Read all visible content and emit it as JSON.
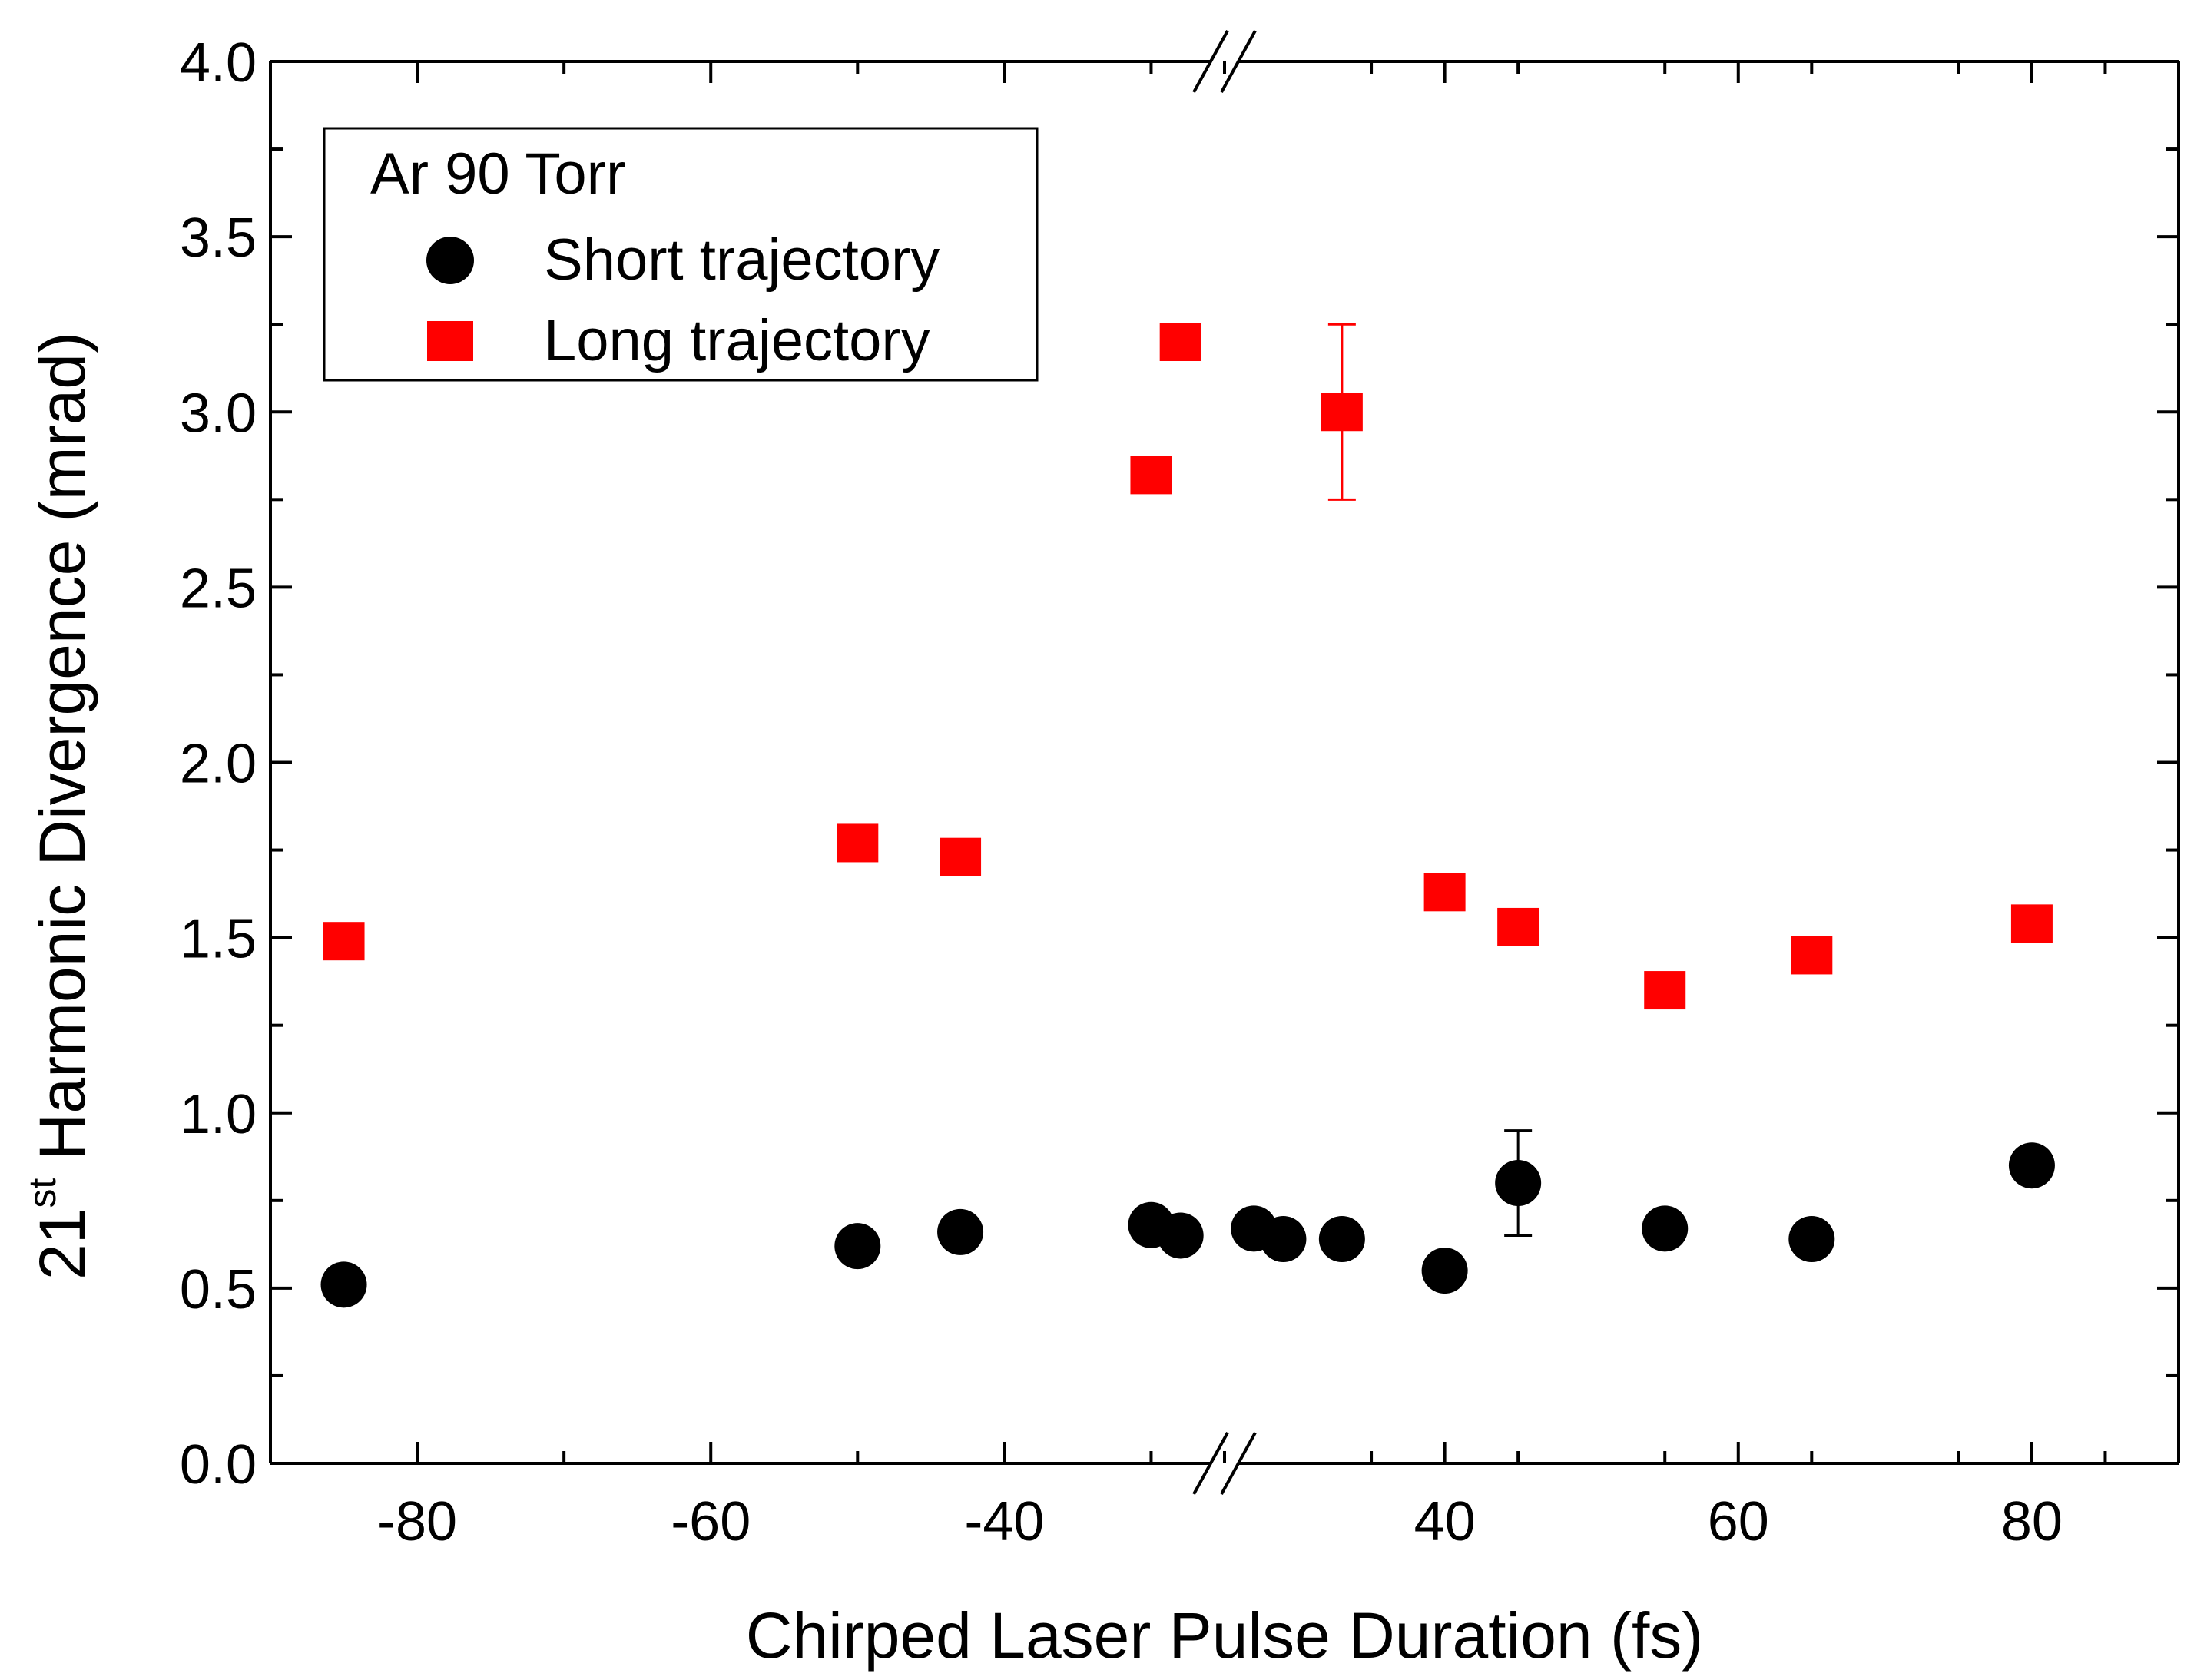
{
  "chart_data": {
    "type": "scatter",
    "title": "",
    "xlabel": "Chirped Laser Pulse Duration (fs)",
    "ylabel": {
      "prefix": "21",
      "superscript": "st",
      "suffix": "Harmonic Divergence (mrad)"
    },
    "x_axis": {
      "broken": true,
      "left_segment": {
        "range": [
          -90,
          -25
        ],
        "ticks": [
          -80,
          -60,
          -40
        ]
      },
      "right_segment": {
        "range": [
          25,
          90
        ],
        "ticks": [
          40,
          60,
          80
        ]
      },
      "tick_labels": [
        "-80",
        "-60",
        "-40",
        "40",
        "60",
        "80"
      ]
    },
    "ylim": [
      0.0,
      4.0
    ],
    "y_ticks": [
      0.0,
      0.5,
      1.0,
      1.5,
      2.0,
      2.5,
      3.0,
      3.5,
      4.0
    ],
    "y_tick_labels": [
      "0.0",
      "0.5",
      "1.0",
      "1.5",
      "2.0",
      "2.5",
      "3.0",
      "3.5",
      "4.0"
    ],
    "legend": {
      "title": "Ar 90 Torr",
      "position": "top-left",
      "entries": [
        "Short trajectory",
        "Long trajectory"
      ]
    },
    "series": [
      {
        "name": "Short trajectory",
        "marker": "circle",
        "color": "#000000",
        "points": [
          {
            "x": -85,
            "y": 0.51
          },
          {
            "x": -50,
            "y": 0.62
          },
          {
            "x": -43,
            "y": 0.66
          },
          {
            "x": -30,
            "y": 0.68
          },
          {
            "x": -28,
            "y": 0.65
          },
          {
            "x": 27,
            "y": 0.67
          },
          {
            "x": 29,
            "y": 0.64
          },
          {
            "x": 33,
            "y": 0.64
          },
          {
            "x": 40,
            "y": 0.55
          },
          {
            "x": 45,
            "y": 0.8,
            "err": 0.15
          },
          {
            "x": 55,
            "y": 0.67
          },
          {
            "x": 65,
            "y": 0.64
          },
          {
            "x": 80,
            "y": 0.85
          }
        ]
      },
      {
        "name": "Long trajectory",
        "marker": "square",
        "color": "#ff0000",
        "points": [
          {
            "x": -85,
            "y": 1.49
          },
          {
            "x": -50,
            "y": 1.77
          },
          {
            "x": -43,
            "y": 1.73
          },
          {
            "x": -30,
            "y": 2.82
          },
          {
            "x": -28,
            "y": 3.2
          },
          {
            "x": 33,
            "y": 3.0,
            "err": 0.25
          },
          {
            "x": 40,
            "y": 1.63
          },
          {
            "x": 45,
            "y": 1.53
          },
          {
            "x": 55,
            "y": 1.35
          },
          {
            "x": 65,
            "y": 1.45
          },
          {
            "x": 80,
            "y": 1.54
          }
        ]
      }
    ]
  }
}
